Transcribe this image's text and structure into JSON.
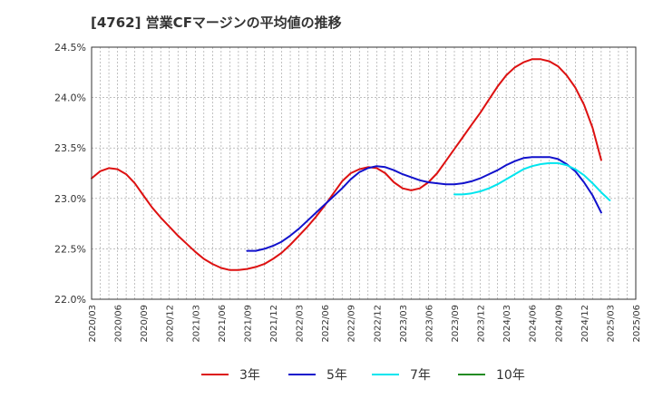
{
  "title": "[4762]  営業CFマージンの平均値の推移",
  "chart_data": {
    "type": "line",
    "title": "[4762]  営業CFマージンの平均値の推移",
    "xlabel": "",
    "ylabel": "",
    "ylim": [
      22.0,
      24.5
    ],
    "y_ticks": [
      "22.0%",
      "22.5%",
      "23.0%",
      "23.5%",
      "24.0%",
      "24.5%"
    ],
    "x_ticks": [
      "2020/03",
      "2020/06",
      "2020/09",
      "2020/12",
      "2021/03",
      "2021/06",
      "2021/09",
      "2021/12",
      "2022/03",
      "2022/06",
      "2022/09",
      "2022/12",
      "2023/03",
      "2023/06",
      "2023/09",
      "2023/12",
      "2024/03",
      "2024/06",
      "2024/09",
      "2024/12",
      "2025/03",
      "2025/06"
    ],
    "grid": true,
    "legend_position": "bottom",
    "series": [
      {
        "name": "3年",
        "color": "#dd1111",
        "x": [
          "2020/03",
          "2020/04",
          "2020/05",
          "2020/06",
          "2020/07",
          "2020/08",
          "2020/09",
          "2020/10",
          "2020/11",
          "2020/12",
          "2021/01",
          "2021/02",
          "2021/03",
          "2021/04",
          "2021/05",
          "2021/06",
          "2021/07",
          "2021/08",
          "2021/09",
          "2021/10",
          "2021/11",
          "2021/12",
          "2022/01",
          "2022/02",
          "2022/03",
          "2022/04",
          "2022/05",
          "2022/06",
          "2022/07",
          "2022/08",
          "2022/09",
          "2022/10",
          "2022/11",
          "2022/12",
          "2023/01",
          "2023/02",
          "2023/03",
          "2023/04",
          "2023/05",
          "2023/06",
          "2023/07",
          "2023/08",
          "2023/09",
          "2023/10",
          "2023/11",
          "2023/12",
          "2024/01",
          "2024/02",
          "2024/03",
          "2024/04",
          "2024/05",
          "2024/06",
          "2024/07",
          "2024/08",
          "2024/09",
          "2024/10",
          "2024/11",
          "2024/12",
          "2025/01",
          "2025/02",
          "2025/03"
        ],
        "values": [
          23.2,
          23.27,
          23.3,
          23.29,
          23.24,
          23.15,
          23.03,
          22.91,
          22.81,
          22.72,
          22.63,
          22.55,
          22.47,
          22.4,
          22.35,
          22.31,
          22.29,
          22.29,
          22.3,
          22.32,
          22.35,
          22.4,
          22.46,
          22.54,
          22.63,
          22.72,
          22.82,
          22.93,
          23.05,
          23.17,
          23.25,
          23.29,
          23.31,
          23.3,
          23.25,
          23.16,
          23.1,
          23.08,
          23.1,
          23.16,
          23.25,
          23.37,
          23.49,
          23.61,
          23.73,
          23.85,
          23.98,
          24.11,
          24.22,
          24.3,
          24.35,
          24.38,
          24.38,
          24.36,
          24.31,
          24.22,
          24.1,
          23.93,
          23.7,
          23.38,
          null
        ]
      },
      {
        "name": "5年",
        "color": "#1111cc",
        "x": [
          "2021/09",
          "2021/10",
          "2021/11",
          "2021/12",
          "2022/01",
          "2022/02",
          "2022/03",
          "2022/04",
          "2022/05",
          "2022/06",
          "2022/07",
          "2022/08",
          "2022/09",
          "2022/10",
          "2022/11",
          "2022/12",
          "2023/01",
          "2023/02",
          "2023/03",
          "2023/04",
          "2023/05",
          "2023/06",
          "2023/07",
          "2023/08",
          "2023/09",
          "2023/10",
          "2023/11",
          "2023/12",
          "2024/01",
          "2024/02",
          "2024/03",
          "2024/04",
          "2024/05",
          "2024/06",
          "2024/07",
          "2024/08",
          "2024/09",
          "2024/10",
          "2024/11",
          "2024/12",
          "2025/01",
          "2025/02",
          "2025/03"
        ],
        "values": [
          22.48,
          22.48,
          22.5,
          22.53,
          22.57,
          22.63,
          22.7,
          22.78,
          22.86,
          22.94,
          23.02,
          23.1,
          23.19,
          23.26,
          23.3,
          23.32,
          23.31,
          23.28,
          23.24,
          23.21,
          23.18,
          23.16,
          23.15,
          23.14,
          23.14,
          23.15,
          23.17,
          23.2,
          23.24,
          23.28,
          23.33,
          23.37,
          23.4,
          23.41,
          23.41,
          23.41,
          23.39,
          23.34,
          23.27,
          23.16,
          23.03,
          22.86,
          null
        ]
      },
      {
        "name": "7年",
        "color": "#00e5ee",
        "x": [
          "2023/09",
          "2023/10",
          "2023/11",
          "2023/12",
          "2024/01",
          "2024/02",
          "2024/03",
          "2024/04",
          "2024/05",
          "2024/06",
          "2024/07",
          "2024/08",
          "2024/09",
          "2024/10",
          "2024/11",
          "2024/12",
          "2025/01",
          "2025/02",
          "2025/03"
        ],
        "values": [
          23.04,
          23.04,
          23.05,
          23.07,
          23.1,
          23.14,
          23.19,
          23.24,
          23.29,
          23.32,
          23.34,
          23.35,
          23.35,
          23.33,
          23.29,
          23.23,
          23.15,
          23.06,
          22.98
        ]
      },
      {
        "name": "10年",
        "color": "#228b22",
        "x": [],
        "values": []
      }
    ]
  }
}
